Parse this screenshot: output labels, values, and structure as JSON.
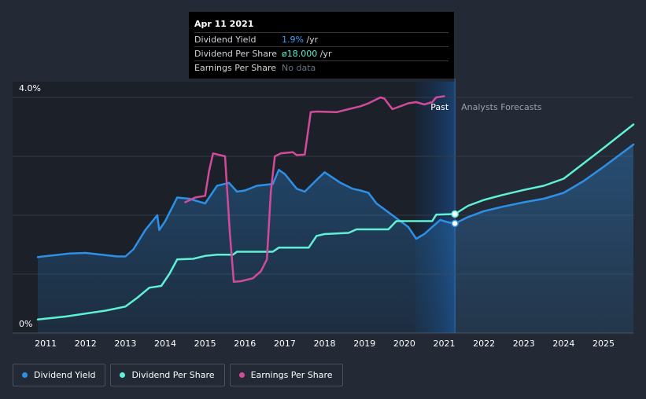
{
  "tooltip": {
    "date": "Apr 11 2021",
    "rows": [
      {
        "label": "Dividend Yield",
        "value": "1.9%",
        "unit": " /yr",
        "color": "#3aa0ff"
      },
      {
        "label": "Dividend Per Share",
        "value": "ø18.000",
        "unit": " /yr",
        "color": "#5ff0d6"
      },
      {
        "label": "Earnings Per Share",
        "value": "No data",
        "unit": "",
        "color": "#6b7280"
      }
    ]
  },
  "regions": {
    "past": "Past",
    "forecast": "Analysts Forecasts"
  },
  "legend": [
    {
      "label": "Dividend Yield",
      "color": "#2e8fe6"
    },
    {
      "label": "Dividend Per Share",
      "color": "#5ff0d6"
    },
    {
      "label": "Earnings Per Share",
      "color": "#d14b9a"
    }
  ],
  "chart_data": {
    "type": "line",
    "x_unit": "year",
    "xlim": [
      2010.8,
      2025.75
    ],
    "x_ticks": [
      2011,
      2012,
      2013,
      2014,
      2015,
      2016,
      2017,
      2018,
      2019,
      2020,
      2021,
      2022,
      2023,
      2024,
      2025
    ],
    "y_ticks": [
      {
        "value": 0,
        "label": "0%"
      },
      {
        "value": 4,
        "label": "4.0%"
      }
    ],
    "ylim": [
      0,
      4
    ],
    "past_end": 2021.27,
    "highlight_start": 2020.27,
    "series": [
      {
        "name": "Dividend Yield",
        "color": "#2e8fe6",
        "fill": true,
        "points": [
          [
            2010.8,
            1.29
          ],
          [
            2011.2,
            1.32
          ],
          [
            2011.6,
            1.35
          ],
          [
            2012.0,
            1.36
          ],
          [
            2012.4,
            1.33
          ],
          [
            2012.8,
            1.3
          ],
          [
            2013.0,
            1.3
          ],
          [
            2013.2,
            1.42
          ],
          [
            2013.5,
            1.75
          ],
          [
            2013.8,
            2.0
          ],
          [
            2013.85,
            1.75
          ],
          [
            2014.0,
            1.9
          ],
          [
            2014.3,
            2.3
          ],
          [
            2014.6,
            2.28
          ],
          [
            2015.0,
            2.2
          ],
          [
            2015.3,
            2.5
          ],
          [
            2015.6,
            2.55
          ],
          [
            2015.8,
            2.4
          ],
          [
            2016.0,
            2.42
          ],
          [
            2016.3,
            2.5
          ],
          [
            2016.7,
            2.53
          ],
          [
            2016.85,
            2.77
          ],
          [
            2017.0,
            2.7
          ],
          [
            2017.3,
            2.45
          ],
          [
            2017.5,
            2.4
          ],
          [
            2017.8,
            2.6
          ],
          [
            2018.0,
            2.73
          ],
          [
            2018.4,
            2.55
          ],
          [
            2018.7,
            2.45
          ],
          [
            2018.9,
            2.42
          ],
          [
            2019.1,
            2.38
          ],
          [
            2019.3,
            2.2
          ],
          [
            2019.6,
            2.05
          ],
          [
            2019.9,
            1.9
          ],
          [
            2020.1,
            1.8
          ],
          [
            2020.3,
            1.6
          ],
          [
            2020.5,
            1.68
          ],
          [
            2020.75,
            1.83
          ],
          [
            2020.9,
            1.92
          ],
          [
            2021.1,
            1.88
          ],
          [
            2021.27,
            1.86
          ],
          [
            2021.6,
            1.97
          ],
          [
            2022.0,
            2.07
          ],
          [
            2022.5,
            2.15
          ],
          [
            2023.0,
            2.22
          ],
          [
            2023.5,
            2.28
          ],
          [
            2024.0,
            2.38
          ],
          [
            2024.5,
            2.58
          ],
          [
            2025.0,
            2.82
          ],
          [
            2025.75,
            3.2
          ]
        ]
      },
      {
        "name": "Dividend Per Share",
        "color": "#5ff0d6",
        "fill": false,
        "points": [
          [
            2010.8,
            0.23
          ],
          [
            2011.5,
            0.28
          ],
          [
            2012.5,
            0.38
          ],
          [
            2013.0,
            0.45
          ],
          [
            2013.3,
            0.6
          ],
          [
            2013.6,
            0.77
          ],
          [
            2013.9,
            0.8
          ],
          [
            2014.1,
            1.0
          ],
          [
            2014.3,
            1.25
          ],
          [
            2014.7,
            1.26
          ],
          [
            2015.0,
            1.31
          ],
          [
            2015.3,
            1.33
          ],
          [
            2015.7,
            1.33
          ],
          [
            2015.8,
            1.38
          ],
          [
            2016.7,
            1.38
          ],
          [
            2016.85,
            1.45
          ],
          [
            2017.6,
            1.45
          ],
          [
            2017.8,
            1.65
          ],
          [
            2018.0,
            1.68
          ],
          [
            2018.6,
            1.7
          ],
          [
            2018.8,
            1.76
          ],
          [
            2019.6,
            1.76
          ],
          [
            2019.8,
            1.9
          ],
          [
            2020.7,
            1.9
          ],
          [
            2020.8,
            2.01
          ],
          [
            2021.27,
            2.02
          ],
          [
            2021.6,
            2.16
          ],
          [
            2022.0,
            2.26
          ],
          [
            2022.5,
            2.35
          ],
          [
            2023.0,
            2.43
          ],
          [
            2023.5,
            2.5
          ],
          [
            2024.0,
            2.62
          ],
          [
            2024.5,
            2.88
          ],
          [
            2025.0,
            3.14
          ],
          [
            2025.75,
            3.54
          ]
        ]
      },
      {
        "name": "Earnings Per Share",
        "color": "#d14b9a",
        "fill": false,
        "points": [
          [
            2014.5,
            2.22
          ],
          [
            2014.75,
            2.3
          ],
          [
            2015.0,
            2.33
          ],
          [
            2015.1,
            2.75
          ],
          [
            2015.2,
            3.05
          ],
          [
            2015.5,
            3.0
          ],
          [
            2015.62,
            1.7
          ],
          [
            2015.72,
            0.87
          ],
          [
            2015.9,
            0.88
          ],
          [
            2016.2,
            0.93
          ],
          [
            2016.4,
            1.05
          ],
          [
            2016.55,
            1.25
          ],
          [
            2016.65,
            2.4
          ],
          [
            2016.75,
            3.0
          ],
          [
            2016.9,
            3.05
          ],
          [
            2017.2,
            3.07
          ],
          [
            2017.3,
            3.02
          ],
          [
            2017.5,
            3.03
          ],
          [
            2017.65,
            3.75
          ],
          [
            2017.8,
            3.76
          ],
          [
            2018.3,
            3.75
          ],
          [
            2018.6,
            3.8
          ],
          [
            2018.9,
            3.85
          ],
          [
            2019.1,
            3.9
          ],
          [
            2019.4,
            4.0
          ],
          [
            2019.5,
            3.98
          ],
          [
            2019.7,
            3.8
          ],
          [
            2019.9,
            3.85
          ],
          [
            2020.1,
            3.9
          ],
          [
            2020.3,
            3.92
          ],
          [
            2020.5,
            3.88
          ],
          [
            2020.7,
            3.92
          ],
          [
            2020.8,
            4.0
          ],
          [
            2021.0,
            4.02
          ]
        ]
      }
    ],
    "markers": [
      {
        "series": "Dividend Yield",
        "x": 2021.27,
        "y": 1.86
      },
      {
        "series": "Dividend Per Share",
        "x": 2021.27,
        "y": 2.02
      }
    ]
  }
}
